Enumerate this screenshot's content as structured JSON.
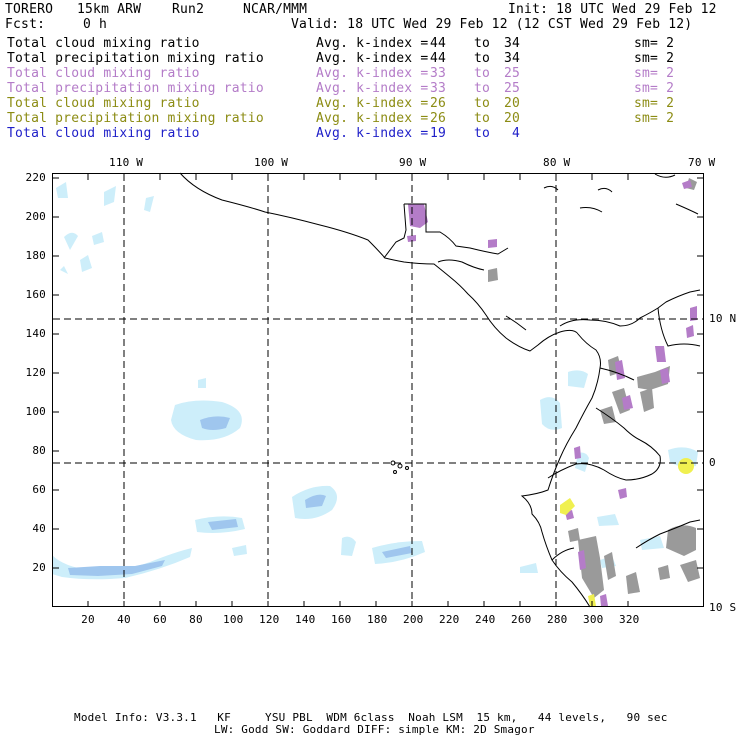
{
  "header": {
    "model": "TORERO",
    "resolution": "15km ARW",
    "run": "Run2",
    "org": "NCAR/MMM",
    "init": "Init: 18 UTC Wed 29 Feb 12",
    "fcst_label": "Fcst:",
    "fcst_value": "0 h",
    "valid": "Valid: 18 UTC Wed 29 Feb 12 (12 CST Wed 29 Feb 12)"
  },
  "legend": [
    {
      "field": "Total cloud mixing ratio",
      "avg": "Avg. k-index =",
      "k1": "44",
      "to": "to",
      "k2": "34",
      "sm": "sm= 2",
      "color": "#000000"
    },
    {
      "field": "Total precipitation mixing ratio",
      "avg": "Avg. k-index =",
      "k1": "44",
      "to": "to",
      "k2": "34",
      "sm": "sm= 2",
      "color": "#000000"
    },
    {
      "field": "Total cloud mixing ratio",
      "avg": "Avg. k-index =",
      "k1": "33",
      "to": "to",
      "k2": "25",
      "sm": "sm= 2",
      "color": "#b47cc8"
    },
    {
      "field": "Total precipitation mixing ratio",
      "avg": "Avg. k-index =",
      "k1": "33",
      "to": "to",
      "k2": "25",
      "sm": "sm= 2",
      "color": "#b47cc8"
    },
    {
      "field": "Total cloud mixing ratio",
      "avg": "Avg. k-index =",
      "k1": "26",
      "to": "to",
      "k2": "20",
      "sm": "sm= 2",
      "color": "#8c8c14"
    },
    {
      "field": "Total precipitation mixing ratio",
      "avg": "Avg. k-index =",
      "k1": "26",
      "to": "to",
      "k2": "20",
      "sm": "sm= 2",
      "color": "#8c8c14"
    },
    {
      "field": "Total cloud mixing ratio",
      "avg": "Avg. k-index =",
      "k1": "19",
      "to": "to",
      "k2": "4",
      "sm": "",
      "color": "#1e1ec8"
    }
  ],
  "map": {
    "lon_labels": [
      "110 W",
      "100 W",
      "90 W",
      "80 W",
      "70 W"
    ],
    "lat_labels": [
      "10 N",
      "0",
      "10 S"
    ],
    "x_ticks": [
      "20",
      "40",
      "60",
      "80",
      "100",
      "120",
      "140",
      "160",
      "180",
      "200",
      "220",
      "240",
      "260",
      "280",
      "300",
      "320"
    ],
    "y_ticks": [
      "220",
      "200",
      "180",
      "160",
      "140",
      "120",
      "100",
      "80",
      "60",
      "40",
      "20"
    ],
    "colors": {
      "light_blue": "#cdeefa",
      "mid_blue": "#9fc6ee",
      "purple": "#b47cc8",
      "gray": "#9a9a9a",
      "yellow": "#f0f050",
      "coast": "#000000"
    }
  },
  "footer": {
    "line1": "Model Info: V3.3.1   KF     YSU PBL  WDM 6class  Noah LSM  15 km,   44 levels,   90 sec",
    "line2": "LW: Godd SW: Goddard DIFF: simple KM: 2D Smagor"
  }
}
